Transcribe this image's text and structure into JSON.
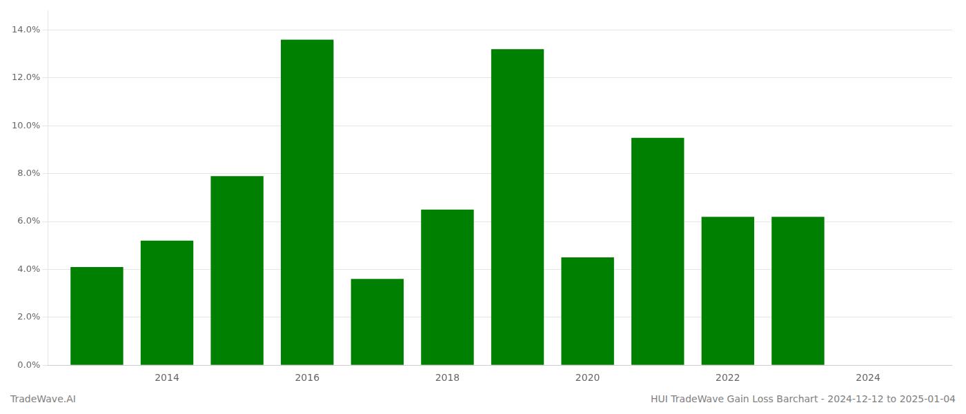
{
  "chart_data": {
    "type": "bar",
    "x": [
      2013,
      2014,
      2015,
      2016,
      2017,
      2018,
      2019,
      2020,
      2021,
      2022,
      2023
    ],
    "values": [
      0.041,
      0.052,
      0.079,
      0.136,
      0.036,
      0.065,
      0.132,
      0.045,
      0.095,
      0.062,
      0.062
    ],
    "color": "#008000",
    "xlim": [
      2012.3,
      2025.2
    ],
    "xticks": [
      2014,
      2016,
      2018,
      2020,
      2022,
      2024
    ],
    "ylim": [
      0,
      0.148
    ],
    "yticks": [
      {
        "value": 0.0,
        "label": "0.0%"
      },
      {
        "value": 0.02,
        "label": "2.0%"
      },
      {
        "value": 0.04,
        "label": "4.0%"
      },
      {
        "value": 0.06,
        "label": "6.0%"
      },
      {
        "value": 0.08,
        "label": "8.0%"
      },
      {
        "value": 0.1,
        "label": "10.0%"
      },
      {
        "value": 0.12,
        "label": "12.0%"
      },
      {
        "value": 0.14,
        "label": "14.0%"
      }
    ],
    "grid": true,
    "annotations": [
      "TradeWave.AI",
      "HUI TradeWave Gain Loss Barchart - 2024-12-12 to 2025-01-04"
    ]
  }
}
